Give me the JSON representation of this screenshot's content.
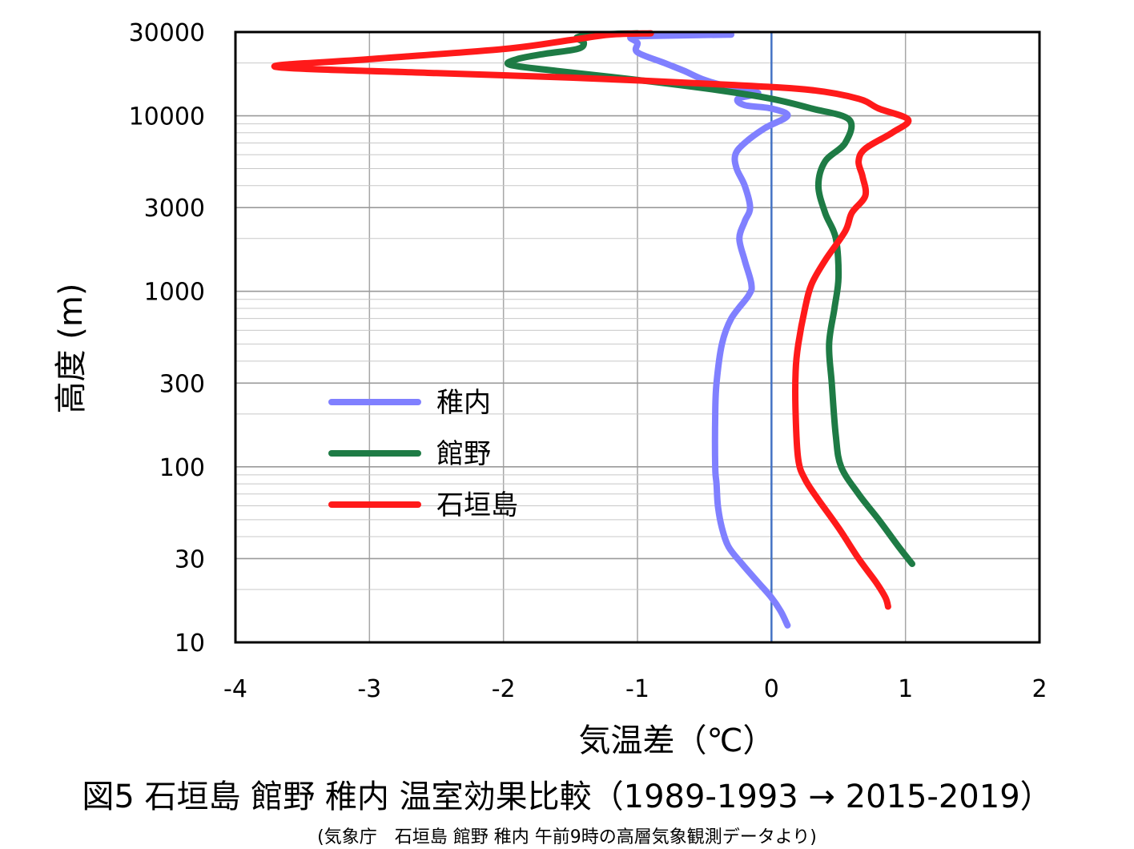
{
  "figure": {
    "title": "図5 石垣島 館野 稚内 温室効果比較（1989-1993 → 2015-2019）",
    "source": "(気象庁　石垣島 館野 稚内 午前9時の高層気象観測データより)"
  },
  "chart_data": {
    "type": "line",
    "title": "",
    "xlabel": "気温差（℃）",
    "ylabel": "高度 (m)",
    "xlim": [
      -4,
      2
    ],
    "ylim": [
      10,
      30000
    ],
    "yscale": "log",
    "x_ticks": [
      -4,
      -3,
      -2,
      -1,
      0,
      1,
      2
    ],
    "x_tick_labels": [
      "-4",
      "-3",
      "-2",
      "-1",
      "0",
      "1",
      "2"
    ],
    "y_ticks": [
      10,
      30,
      100,
      300,
      1000,
      3000,
      10000,
      30000
    ],
    "y_tick_labels": [
      "10",
      "30",
      "100",
      "300",
      "1000",
      "3000",
      "10000",
      "30000"
    ],
    "grid": true,
    "zero_line_color": "#4472c4",
    "legend_position": "lower-left",
    "series": [
      {
        "name": "稚内",
        "color": "#8080ff",
        "points": [
          [
            0.12,
            12.5
          ],
          [
            0.07,
            15
          ],
          [
            0.0,
            18
          ],
          [
            -0.1,
            22
          ],
          [
            -0.22,
            28
          ],
          [
            -0.32,
            35
          ],
          [
            -0.37,
            45
          ],
          [
            -0.4,
            60
          ],
          [
            -0.41,
            80
          ],
          [
            -0.42,
            100
          ],
          [
            -0.42,
            200
          ],
          [
            -0.41,
            300
          ],
          [
            -0.37,
            500
          ],
          [
            -0.3,
            700
          ],
          [
            -0.17,
            950
          ],
          [
            -0.15,
            1100
          ],
          [
            -0.2,
            1500
          ],
          [
            -0.24,
            2000
          ],
          [
            -0.2,
            2500
          ],
          [
            -0.16,
            3000
          ],
          [
            -0.2,
            4000
          ],
          [
            -0.26,
            5000
          ],
          [
            -0.27,
            6000
          ],
          [
            -0.2,
            7000
          ],
          [
            -0.05,
            8500
          ],
          [
            0.12,
            10000
          ],
          [
            0.0,
            11000
          ],
          [
            -0.2,
            11500
          ],
          [
            -0.25,
            12500
          ],
          [
            -0.1,
            13500
          ],
          [
            -0.3,
            14500
          ],
          [
            -0.5,
            16000
          ],
          [
            -0.65,
            18000
          ],
          [
            -0.8,
            20000
          ],
          [
            -1.0,
            23000
          ],
          [
            -1.0,
            26000
          ],
          [
            -1.05,
            28000
          ],
          [
            -0.9,
            28500
          ],
          [
            -0.3,
            29000
          ]
        ]
      },
      {
        "name": "館野",
        "color": "#1e7b45",
        "points": [
          [
            1.05,
            28
          ],
          [
            0.95,
            35
          ],
          [
            0.8,
            50
          ],
          [
            0.65,
            70
          ],
          [
            0.52,
            100
          ],
          [
            0.48,
            150
          ],
          [
            0.45,
            300
          ],
          [
            0.43,
            500
          ],
          [
            0.47,
            800
          ],
          [
            0.5,
            1200
          ],
          [
            0.48,
            2000
          ],
          [
            0.4,
            2800
          ],
          [
            0.35,
            4000
          ],
          [
            0.4,
            5500
          ],
          [
            0.55,
            7000
          ],
          [
            0.58,
            9500
          ],
          [
            0.3,
            11000
          ],
          [
            0.0,
            12500
          ],
          [
            -0.4,
            14000
          ],
          [
            -1.0,
            16000
          ],
          [
            -1.6,
            18000
          ],
          [
            -1.95,
            19500
          ],
          [
            -1.9,
            21000
          ],
          [
            -1.7,
            22500
          ],
          [
            -1.45,
            24000
          ],
          [
            -1.4,
            26000
          ],
          [
            -1.45,
            28000
          ],
          [
            -1.3,
            29000
          ],
          [
            -1.0,
            29500
          ]
        ]
      },
      {
        "name": "石垣島",
        "color": "#ff1a1a",
        "points": [
          [
            0.87,
            16
          ],
          [
            0.85,
            18
          ],
          [
            0.78,
            22
          ],
          [
            0.65,
            30
          ],
          [
            0.5,
            45
          ],
          [
            0.35,
            65
          ],
          [
            0.25,
            85
          ],
          [
            0.2,
            110
          ],
          [
            0.18,
            200
          ],
          [
            0.18,
            350
          ],
          [
            0.2,
            500
          ],
          [
            0.25,
            800
          ],
          [
            0.3,
            1100
          ],
          [
            0.4,
            1500
          ],
          [
            0.55,
            2200
          ],
          [
            0.6,
            2800
          ],
          [
            0.7,
            3500
          ],
          [
            0.68,
            4500
          ],
          [
            0.65,
            5500
          ],
          [
            0.7,
            6500
          ],
          [
            0.9,
            8000
          ],
          [
            1.02,
            9500
          ],
          [
            0.8,
            11000
          ],
          [
            0.65,
            12500
          ],
          [
            0.3,
            14000
          ],
          [
            -0.3,
            15000
          ],
          [
            -1.5,
            16500
          ],
          [
            -2.5,
            17500
          ],
          [
            -3.7,
            19000
          ],
          [
            -3.0,
            21000
          ],
          [
            -2.0,
            24000
          ],
          [
            -1.5,
            27000
          ],
          [
            -1.2,
            29000
          ],
          [
            -0.9,
            29500
          ]
        ]
      }
    ]
  }
}
